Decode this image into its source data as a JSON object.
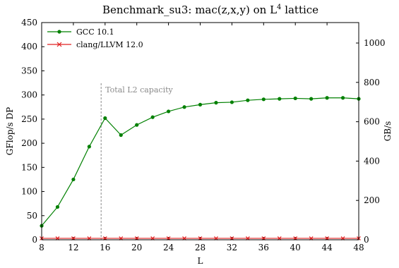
{
  "chart_data": {
    "type": "line",
    "title_main": "Benchmark_su3: mac(z,x,y) on L",
    "title_sup": "4",
    "title_end": " lattice",
    "xlabel": "L",
    "ylabel": "GFlop/s DP",
    "y2label": "GB/s",
    "xlim": [
      8,
      48
    ],
    "ylim": [
      0,
      450
    ],
    "y2lim": [
      0,
      1104
    ],
    "xticks": [
      "8",
      "12",
      "16",
      "20",
      "24",
      "28",
      "32",
      "36",
      "40",
      "44",
      "48"
    ],
    "yticks": [
      "0",
      "50",
      "100",
      "150",
      "200",
      "250",
      "300",
      "350",
      "400",
      "450"
    ],
    "y2ticks": [
      "0",
      "200",
      "400",
      "600",
      "800",
      "1000"
    ],
    "legend_position": "top-left",
    "annotation": {
      "text": "Total L2 capacity",
      "x": 15.5
    },
    "series": [
      {
        "name": "GCC 10.1",
        "color": "#008000",
        "marker": "circle",
        "x": [
          8,
          10,
          12,
          14,
          16,
          18,
          20,
          22,
          24,
          26,
          28,
          30,
          32,
          34,
          36,
          38,
          40,
          42,
          44,
          46,
          48
        ],
        "y": [
          29,
          68,
          125,
          193,
          252,
          217,
          238,
          254,
          266,
          275,
          280,
          284,
          285,
          289,
          291,
          292,
          293,
          292,
          294,
          294,
          292
        ]
      },
      {
        "name": "clang/LLVM 12.0",
        "color": "#e02020",
        "marker": "x",
        "x": [
          8,
          10,
          12,
          14,
          16,
          18,
          20,
          22,
          24,
          26,
          28,
          30,
          32,
          34,
          36,
          38,
          40,
          42,
          44,
          46,
          48
        ],
        "y": [
          3,
          3,
          3,
          3,
          3,
          3,
          3,
          3,
          3,
          3,
          3,
          3,
          3,
          3,
          3,
          3,
          3,
          3,
          3,
          3,
          3
        ]
      }
    ]
  }
}
